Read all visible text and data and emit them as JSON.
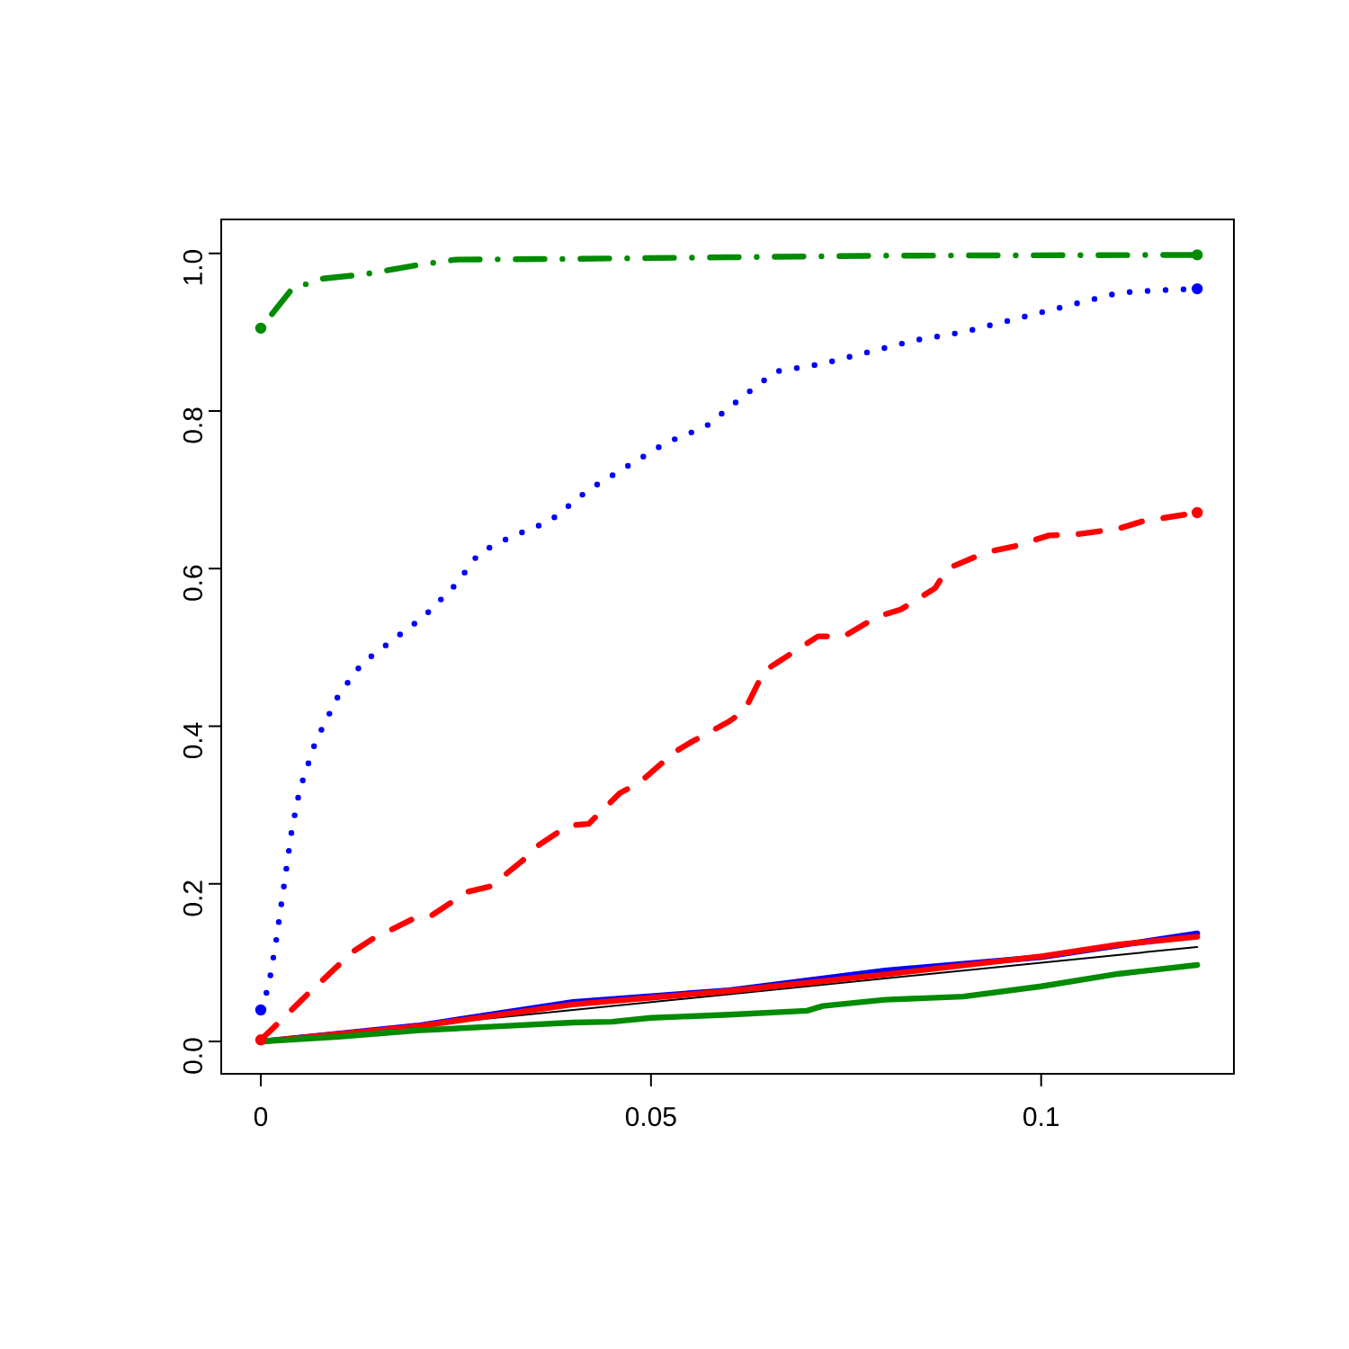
{
  "chart_data": {
    "type": "line",
    "xlim": [
      -0.00507,
      0.1247
    ],
    "ylim": [
      -0.041,
      1.043
    ],
    "xticks": [
      0,
      0.05,
      0.1
    ],
    "yticks": [
      {
        "value": 0,
        "label": "0.0"
      },
      {
        "value": 0.2,
        "label": "0.2"
      },
      {
        "value": 0.4,
        "label": "0.4"
      },
      {
        "value": 0.6,
        "label": "0.6"
      },
      {
        "value": 0.8,
        "label": "0.8"
      },
      {
        "value": 1,
        "label": "1.0"
      }
    ],
    "grid": false,
    "marker": "none",
    "series": [
      {
        "color": "#000000",
        "line_style": "solid",
        "x": [
          0,
          0.12
        ],
        "values": [
          0,
          0.12
        ]
      },
      {
        "color": "#0000ff",
        "line_style": "solid",
        "x": [
          0,
          0.02,
          0.04,
          0.06,
          0.08,
          0.1,
          0.12
        ],
        "values": [
          0,
          0.02,
          0.05,
          0.065,
          0.09,
          0.107,
          0.137
        ]
      },
      {
        "color": "#ff0000",
        "line_style": "solid",
        "x": [
          0,
          0.02,
          0.04,
          0.06,
          0.08,
          0.1,
          0.11,
          0.12
        ],
        "values": [
          0,
          0.019,
          0.047,
          0.064,
          0.085,
          0.108,
          0.123,
          0.133
        ]
      },
      {
        "color": "#008b00",
        "line_style": "solid",
        "x": [
          0,
          0.01,
          0.02,
          0.03,
          0.04,
          0.045,
          0.05,
          0.06,
          0.07,
          0.072,
          0.08,
          0.09,
          0.1,
          0.11,
          0.12
        ],
        "values": [
          0,
          0.006,
          0.014,
          0.019,
          0.024,
          0.025,
          0.03,
          0.034,
          0.039,
          0.045,
          0.053,
          0.057,
          0.07,
          0.086,
          0.097
        ]
      },
      {
        "color": "#ff0000",
        "line_style": "dashed",
        "x": [
          0,
          0.0022,
          0.006,
          0.0118,
          0.0143,
          0.0194,
          0.0219,
          0.0265,
          0.0295,
          0.0336,
          0.0353,
          0.0394,
          0.042,
          0.046,
          0.0486,
          0.053,
          0.055,
          0.06,
          0.062,
          0.0645,
          0.067,
          0.0714,
          0.0747,
          0.079,
          0.082,
          0.0864,
          0.088,
          0.093,
          0.0965,
          0.101,
          0.105,
          0.11,
          0.113,
          0.12
        ],
        "values": [
          0.002,
          0.023,
          0.06,
          0.114,
          0.13,
          0.155,
          0.16,
          0.19,
          0.197,
          0.23,
          0.247,
          0.274,
          0.276,
          0.315,
          0.329,
          0.367,
          0.379,
          0.406,
          0.42,
          0.47,
          0.486,
          0.514,
          0.514,
          0.539,
          0.548,
          0.575,
          0.6,
          0.621,
          0.628,
          0.642,
          0.644,
          0.651,
          0.66,
          0.671
        ]
      },
      {
        "color": "#0000ff",
        "line_style": "dotted",
        "x": [
          0,
          0.001,
          0.002,
          0.003,
          0.004,
          0.005,
          0.007,
          0.01,
          0.013,
          0.017,
          0.021,
          0.025,
          0.028,
          0.032,
          0.037,
          0.042,
          0.047,
          0.052,
          0.057,
          0.062,
          0.066,
          0.072,
          0.078,
          0.084,
          0.09,
          0.096,
          0.1,
          0.106,
          0.11,
          0.115,
          0.12
        ],
        "values": [
          0.04,
          0.07,
          0.13,
          0.2,
          0.27,
          0.32,
          0.38,
          0.44,
          0.48,
          0.51,
          0.54,
          0.58,
          0.62,
          0.64,
          0.66,
          0.7,
          0.73,
          0.76,
          0.78,
          0.82,
          0.85,
          0.86,
          0.875,
          0.89,
          0.9,
          0.915,
          0.925,
          0.94,
          0.95,
          0.953,
          0.955
        ]
      },
      {
        "color": "#008b00",
        "line_style": "dashdot",
        "x": [
          0,
          0.002,
          0.004,
          0.008,
          0.013,
          0.016,
          0.02,
          0.025,
          0.04,
          0.06,
          0.08,
          0.12
        ],
        "values": [
          0.905,
          0.93,
          0.955,
          0.968,
          0.973,
          0.978,
          0.985,
          0.992,
          0.993,
          0.995,
          0.997,
          0.998
        ]
      }
    ]
  }
}
